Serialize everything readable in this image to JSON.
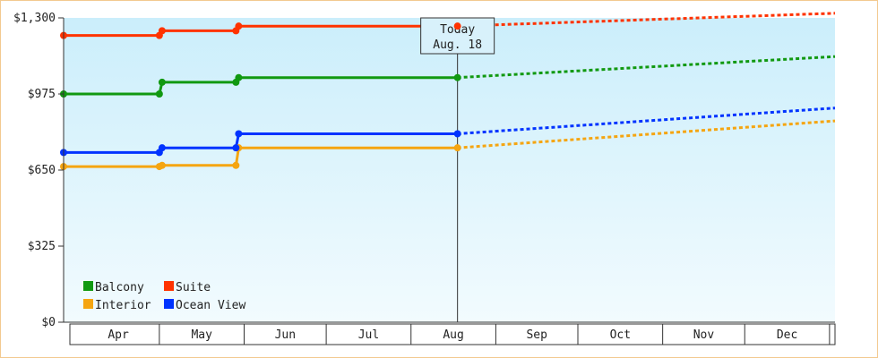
{
  "chart_data": {
    "type": "line",
    "title": "",
    "xlabel": "",
    "ylabel": "",
    "ylim": [
      0,
      1300
    ],
    "yticks": [
      {
        "value": 0,
        "label": "$0"
      },
      {
        "value": 325,
        "label": "$325"
      },
      {
        "value": 650,
        "label": "$650"
      },
      {
        "value": 975,
        "label": "$975"
      },
      {
        "value": 1300,
        "label": "$1,300"
      }
    ],
    "x_range": [
      "2024-03-27",
      "2025-01-03"
    ],
    "months": [
      {
        "label": "Apr",
        "start": "2024-04-01",
        "end": "2024-05-01"
      },
      {
        "label": "May",
        "start": "2024-05-01",
        "end": "2024-06-01"
      },
      {
        "label": "Jun",
        "start": "2024-06-01",
        "end": "2024-07-01"
      },
      {
        "label": "Jul",
        "start": "2024-07-01",
        "end": "2024-08-01"
      },
      {
        "label": "Aug",
        "start": "2024-08-01",
        "end": "2024-09-01"
      },
      {
        "label": "Sep",
        "start": "2024-09-01",
        "end": "2024-10-01"
      },
      {
        "label": "Oct",
        "start": "2024-10-01",
        "end": "2024-11-01"
      },
      {
        "label": "Nov",
        "start": "2024-11-01",
        "end": "2024-12-01"
      },
      {
        "label": "Dec",
        "start": "2024-12-01",
        "end": "2025-01-01"
      }
    ],
    "today": {
      "date": "2024-08-18",
      "line1": "Today",
      "line2": "Aug. 18"
    },
    "legend_placement": "bottom-left",
    "grid": false,
    "series": [
      {
        "name": "Balcony",
        "color": "#119911",
        "points": [
          {
            "x": "2024-03-27",
            "y": 975
          },
          {
            "x": "2024-05-01",
            "y": 975
          },
          {
            "x": "2024-05-02",
            "y": 1025
          },
          {
            "x": "2024-05-29",
            "y": 1025
          },
          {
            "x": "2024-05-30",
            "y": 1045
          },
          {
            "x": "2024-08-18",
            "y": 1045
          }
        ],
        "forecast": [
          {
            "x": "2024-08-18",
            "y": 1045
          },
          {
            "x": "2025-01-03",
            "y": 1135
          }
        ]
      },
      {
        "name": "Suite",
        "color": "#ff3300",
        "points": [
          {
            "x": "2024-03-27",
            "y": 1225
          },
          {
            "x": "2024-05-01",
            "y": 1225
          },
          {
            "x": "2024-05-02",
            "y": 1245
          },
          {
            "x": "2024-05-29",
            "y": 1245
          },
          {
            "x": "2024-05-30",
            "y": 1265
          },
          {
            "x": "2024-08-18",
            "y": 1265
          }
        ],
        "forecast": [
          {
            "x": "2024-08-18",
            "y": 1265
          },
          {
            "x": "2025-01-03",
            "y": 1320
          }
        ]
      },
      {
        "name": "Interior",
        "color": "#f5a511",
        "points": [
          {
            "x": "2024-03-27",
            "y": 665
          },
          {
            "x": "2024-05-01",
            "y": 665
          },
          {
            "x": "2024-05-02",
            "y": 670
          },
          {
            "x": "2024-05-29",
            "y": 670
          },
          {
            "x": "2024-05-30",
            "y": 745
          },
          {
            "x": "2024-08-18",
            "y": 745
          }
        ],
        "forecast": [
          {
            "x": "2024-08-18",
            "y": 745
          },
          {
            "x": "2025-01-03",
            "y": 860
          }
        ]
      },
      {
        "name": "Ocean View",
        "color": "#0033ff",
        "points": [
          {
            "x": "2024-03-27",
            "y": 725
          },
          {
            "x": "2024-05-01",
            "y": 725
          },
          {
            "x": "2024-05-02",
            "y": 745
          },
          {
            "x": "2024-05-29",
            "y": 745
          },
          {
            "x": "2024-05-30",
            "y": 805
          },
          {
            "x": "2024-08-18",
            "y": 805
          }
        ],
        "forecast": [
          {
            "x": "2024-08-18",
            "y": 805
          },
          {
            "x": "2025-01-03",
            "y": 915
          }
        ]
      }
    ]
  }
}
